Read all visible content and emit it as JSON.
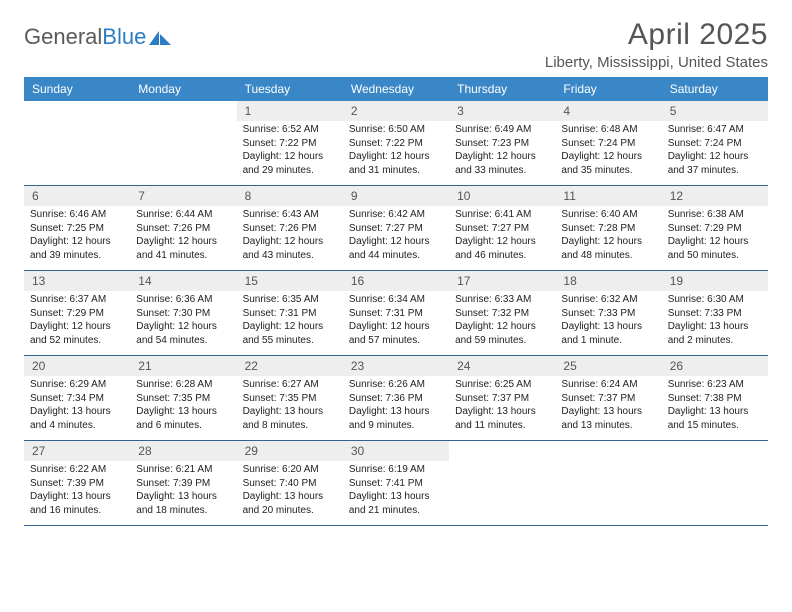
{
  "logo": {
    "text1": "General",
    "text2": "Blue"
  },
  "title": {
    "month": "April 2025",
    "location": "Liberty, Mississippi, United States"
  },
  "colors": {
    "header_bg": "#3a87c7",
    "header_text": "#ffffff",
    "daynum_bg": "#eeeeee",
    "daynum_text": "#555555",
    "week_border": "#33628f",
    "body_text": "#222222",
    "title_text": "#555555",
    "logo_gray": "#5a5a5a",
    "logo_blue": "#2d7dc2"
  },
  "day_names": [
    "Sunday",
    "Monday",
    "Tuesday",
    "Wednesday",
    "Thursday",
    "Friday",
    "Saturday"
  ],
  "labels": {
    "sunrise": "Sunrise:",
    "sunset": "Sunset:",
    "daylight": "Daylight:"
  },
  "weeks": [
    [
      {
        "n": "",
        "empty": true
      },
      {
        "n": "",
        "empty": true
      },
      {
        "n": "1",
        "sunrise": "6:52 AM",
        "sunset": "7:22 PM",
        "daylight": "12 hours and 29 minutes."
      },
      {
        "n": "2",
        "sunrise": "6:50 AM",
        "sunset": "7:22 PM",
        "daylight": "12 hours and 31 minutes."
      },
      {
        "n": "3",
        "sunrise": "6:49 AM",
        "sunset": "7:23 PM",
        "daylight": "12 hours and 33 minutes."
      },
      {
        "n": "4",
        "sunrise": "6:48 AM",
        "sunset": "7:24 PM",
        "daylight": "12 hours and 35 minutes."
      },
      {
        "n": "5",
        "sunrise": "6:47 AM",
        "sunset": "7:24 PM",
        "daylight": "12 hours and 37 minutes."
      }
    ],
    [
      {
        "n": "6",
        "sunrise": "6:46 AM",
        "sunset": "7:25 PM",
        "daylight": "12 hours and 39 minutes."
      },
      {
        "n": "7",
        "sunrise": "6:44 AM",
        "sunset": "7:26 PM",
        "daylight": "12 hours and 41 minutes."
      },
      {
        "n": "8",
        "sunrise": "6:43 AM",
        "sunset": "7:26 PM",
        "daylight": "12 hours and 43 minutes."
      },
      {
        "n": "9",
        "sunrise": "6:42 AM",
        "sunset": "7:27 PM",
        "daylight": "12 hours and 44 minutes."
      },
      {
        "n": "10",
        "sunrise": "6:41 AM",
        "sunset": "7:27 PM",
        "daylight": "12 hours and 46 minutes."
      },
      {
        "n": "11",
        "sunrise": "6:40 AM",
        "sunset": "7:28 PM",
        "daylight": "12 hours and 48 minutes."
      },
      {
        "n": "12",
        "sunrise": "6:38 AM",
        "sunset": "7:29 PM",
        "daylight": "12 hours and 50 minutes."
      }
    ],
    [
      {
        "n": "13",
        "sunrise": "6:37 AM",
        "sunset": "7:29 PM",
        "daylight": "12 hours and 52 minutes."
      },
      {
        "n": "14",
        "sunrise": "6:36 AM",
        "sunset": "7:30 PM",
        "daylight": "12 hours and 54 minutes."
      },
      {
        "n": "15",
        "sunrise": "6:35 AM",
        "sunset": "7:31 PM",
        "daylight": "12 hours and 55 minutes."
      },
      {
        "n": "16",
        "sunrise": "6:34 AM",
        "sunset": "7:31 PM",
        "daylight": "12 hours and 57 minutes."
      },
      {
        "n": "17",
        "sunrise": "6:33 AM",
        "sunset": "7:32 PM",
        "daylight": "12 hours and 59 minutes."
      },
      {
        "n": "18",
        "sunrise": "6:32 AM",
        "sunset": "7:33 PM",
        "daylight": "13 hours and 1 minute."
      },
      {
        "n": "19",
        "sunrise": "6:30 AM",
        "sunset": "7:33 PM",
        "daylight": "13 hours and 2 minutes."
      }
    ],
    [
      {
        "n": "20",
        "sunrise": "6:29 AM",
        "sunset": "7:34 PM",
        "daylight": "13 hours and 4 minutes."
      },
      {
        "n": "21",
        "sunrise": "6:28 AM",
        "sunset": "7:35 PM",
        "daylight": "13 hours and 6 minutes."
      },
      {
        "n": "22",
        "sunrise": "6:27 AM",
        "sunset": "7:35 PM",
        "daylight": "13 hours and 8 minutes."
      },
      {
        "n": "23",
        "sunrise": "6:26 AM",
        "sunset": "7:36 PM",
        "daylight": "13 hours and 9 minutes."
      },
      {
        "n": "24",
        "sunrise": "6:25 AM",
        "sunset": "7:37 PM",
        "daylight": "13 hours and 11 minutes."
      },
      {
        "n": "25",
        "sunrise": "6:24 AM",
        "sunset": "7:37 PM",
        "daylight": "13 hours and 13 minutes."
      },
      {
        "n": "26",
        "sunrise": "6:23 AM",
        "sunset": "7:38 PM",
        "daylight": "13 hours and 15 minutes."
      }
    ],
    [
      {
        "n": "27",
        "sunrise": "6:22 AM",
        "sunset": "7:39 PM",
        "daylight": "13 hours and 16 minutes."
      },
      {
        "n": "28",
        "sunrise": "6:21 AM",
        "sunset": "7:39 PM",
        "daylight": "13 hours and 18 minutes."
      },
      {
        "n": "29",
        "sunrise": "6:20 AM",
        "sunset": "7:40 PM",
        "daylight": "13 hours and 20 minutes."
      },
      {
        "n": "30",
        "sunrise": "6:19 AM",
        "sunset": "7:41 PM",
        "daylight": "13 hours and 21 minutes."
      },
      {
        "n": "",
        "empty": true
      },
      {
        "n": "",
        "empty": true
      },
      {
        "n": "",
        "empty": true
      }
    ]
  ]
}
